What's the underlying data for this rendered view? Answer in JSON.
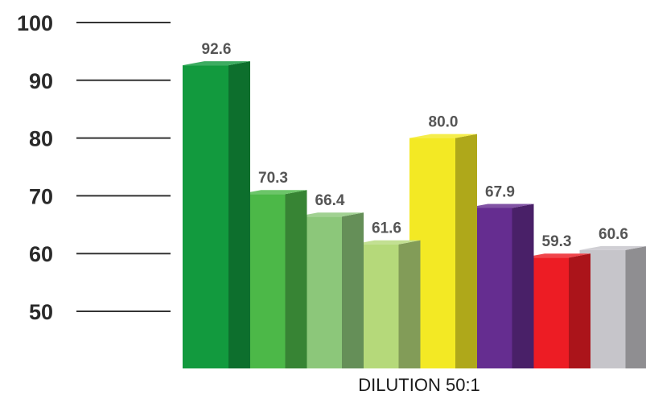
{
  "chart_data": {
    "type": "bar",
    "style": "3d",
    "categories": [
      "",
      "",
      "",
      "",
      "",
      "",
      "",
      ""
    ],
    "values": [
      92.6,
      70.3,
      66.4,
      61.6,
      80.0,
      67.9,
      59.3,
      60.6
    ],
    "value_labels": [
      "92.6",
      "70.3",
      "66.4",
      "61.6",
      "80.0",
      "67.9",
      "59.3",
      "60.6"
    ],
    "title": "",
    "xlabel": "DILUTION 50:1",
    "ylabel": "",
    "ylim": [
      50,
      100
    ],
    "yticks": [
      100,
      90,
      80,
      70,
      60,
      50
    ],
    "ytick_labels": [
      "100",
      "90",
      "80",
      "70",
      "60",
      "50"
    ],
    "grid": true,
    "legend": "none",
    "colors": [
      "#129a3e",
      "#4cb848",
      "#8cc77a",
      "#b5d97a",
      "#f3e924",
      "#652d90",
      "#ed1c24",
      "#c6c5ca"
    ]
  }
}
